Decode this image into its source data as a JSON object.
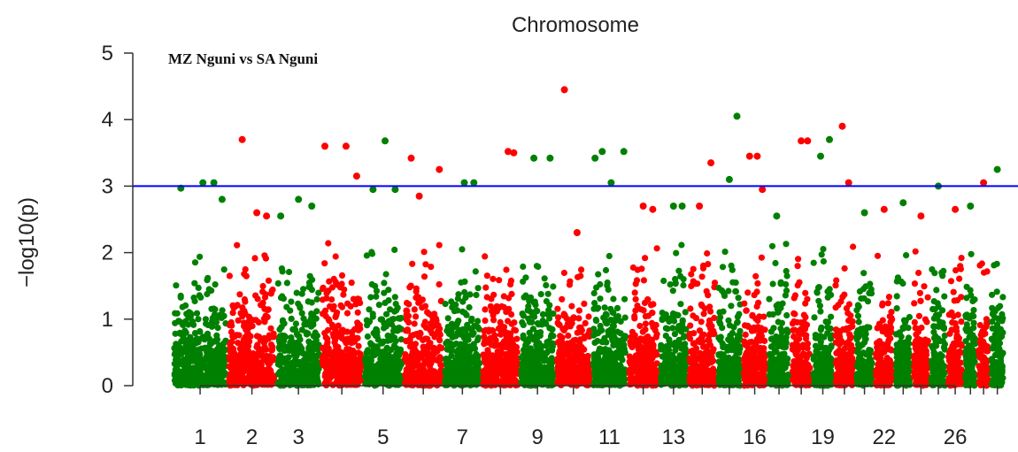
{
  "chart_data": {
    "type": "scatter",
    "top_label": "Chromosome",
    "title": "MZ Nguni vs SA Nguni",
    "ylabel": "−log10(p)",
    "ylim": [
      0,
      5
    ],
    "yticks": [
      0,
      1,
      2,
      3,
      4,
      5
    ],
    "threshold": 3,
    "colors": {
      "odd": "#008000",
      "even": "#ff0000",
      "threshold": "#0000ff"
    },
    "grid": false,
    "chromosomes": [
      {
        "chr": 1,
        "label": "1",
        "top": [
          {
            "x": 0.15,
            "y": 2.97
          },
          {
            "x": 0.55,
            "y": 3.05
          },
          {
            "x": 0.75,
            "y": 3.05
          },
          {
            "x": 0.9,
            "y": 2.8
          }
        ]
      },
      {
        "chr": 2,
        "label": "2",
        "top": [
          {
            "x": 0.3,
            "y": 3.7
          },
          {
            "x": 0.6,
            "y": 2.6
          },
          {
            "x": 0.8,
            "y": 2.55
          }
        ]
      },
      {
        "chr": 3,
        "label": "3",
        "top": [
          {
            "x": 0.1,
            "y": 2.55
          },
          {
            "x": 0.5,
            "y": 2.8
          },
          {
            "x": 0.8,
            "y": 2.7
          }
        ]
      },
      {
        "chr": 4,
        "label": "",
        "top": [
          {
            "x": 0.1,
            "y": 3.6
          },
          {
            "x": 0.6,
            "y": 3.6
          },
          {
            "x": 0.85,
            "y": 3.15
          }
        ]
      },
      {
        "chr": 5,
        "label": "5",
        "top": [
          {
            "x": 0.25,
            "y": 2.95
          },
          {
            "x": 0.55,
            "y": 3.68
          },
          {
            "x": 0.8,
            "y": 2.95
          }
        ]
      },
      {
        "chr": 6,
        "label": "",
        "top": [
          {
            "x": 0.2,
            "y": 3.42
          },
          {
            "x": 0.4,
            "y": 2.85
          },
          {
            "x": 0.9,
            "y": 3.25
          }
        ]
      },
      {
        "chr": 7,
        "label": "7",
        "top": [
          {
            "x": 0.55,
            "y": 3.05
          },
          {
            "x": 0.8,
            "y": 3.05
          }
        ]
      },
      {
        "chr": 8,
        "label": "",
        "top": [
          {
            "x": 0.7,
            "y": 3.52
          },
          {
            "x": 0.85,
            "y": 3.5
          }
        ]
      },
      {
        "chr": 9,
        "label": "9",
        "top": [
          {
            "x": 0.4,
            "y": 3.42
          },
          {
            "x": 0.85,
            "y": 3.42
          }
        ]
      },
      {
        "chr": 10,
        "label": "",
        "top": [
          {
            "x": 0.25,
            "y": 4.45
          },
          {
            "x": 0.6,
            "y": 2.3
          }
        ]
      },
      {
        "chr": 11,
        "label": "11",
        "top": [
          {
            "x": 0.1,
            "y": 3.42
          },
          {
            "x": 0.3,
            "y": 3.52
          },
          {
            "x": 0.55,
            "y": 3.05
          },
          {
            "x": 0.9,
            "y": 3.52
          }
        ]
      },
      {
        "chr": 12,
        "label": "",
        "top": [
          {
            "x": 0.5,
            "y": 2.7
          },
          {
            "x": 0.8,
            "y": 2.65
          }
        ]
      },
      {
        "chr": 13,
        "label": "13",
        "top": [
          {
            "x": 0.5,
            "y": 2.7
          },
          {
            "x": 0.8,
            "y": 2.7
          }
        ]
      },
      {
        "chr": 14,
        "label": "",
        "top": [
          {
            "x": 0.4,
            "y": 2.7
          },
          {
            "x": 0.8,
            "y": 3.35
          }
        ]
      },
      {
        "chr": 15,
        "label": "",
        "top": [
          {
            "x": 0.5,
            "y": 3.1
          },
          {
            "x": 0.8,
            "y": 4.05
          }
        ]
      },
      {
        "chr": 16,
        "label": "16",
        "top": [
          {
            "x": 0.3,
            "y": 3.45
          },
          {
            "x": 0.6,
            "y": 3.45
          },
          {
            "x": 0.8,
            "y": 2.95
          }
        ]
      },
      {
        "chr": 17,
        "label": "",
        "top": [
          {
            "x": 0.4,
            "y": 2.55
          }
        ]
      },
      {
        "chr": 18,
        "label": "",
        "top": [
          {
            "x": 0.5,
            "y": 3.68
          },
          {
            "x": 0.8,
            "y": 3.68
          }
        ]
      },
      {
        "chr": 19,
        "label": "19",
        "top": [
          {
            "x": 0.4,
            "y": 3.45
          },
          {
            "x": 0.8,
            "y": 3.7
          }
        ]
      },
      {
        "chr": 20,
        "label": "",
        "top": [
          {
            "x": 0.4,
            "y": 3.9
          },
          {
            "x": 0.7,
            "y": 3.05
          }
        ]
      },
      {
        "chr": 21,
        "label": "",
        "top": [
          {
            "x": 0.5,
            "y": 2.6
          }
        ]
      },
      {
        "chr": 22,
        "label": "22",
        "top": [
          {
            "x": 0.5,
            "y": 2.65
          }
        ]
      },
      {
        "chr": 23,
        "label": "",
        "top": [
          {
            "x": 0.5,
            "y": 2.75
          }
        ]
      },
      {
        "chr": 24,
        "label": "",
        "top": [
          {
            "x": 0.5,
            "y": 2.55
          }
        ]
      },
      {
        "chr": 25,
        "label": "",
        "top": [
          {
            "x": 0.5,
            "y": 3.0
          }
        ]
      },
      {
        "chr": 26,
        "label": "26",
        "top": [
          {
            "x": 0.5,
            "y": 2.65
          }
        ]
      },
      {
        "chr": 27,
        "label": "",
        "top": [
          {
            "x": 0.5,
            "y": 2.7
          }
        ]
      },
      {
        "chr": 28,
        "label": "",
        "top": [
          {
            "x": 0.5,
            "y": 3.05
          }
        ]
      },
      {
        "chr": 29,
        "label": "",
        "top": [
          {
            "x": 0.5,
            "y": 3.25
          }
        ]
      }
    ]
  }
}
